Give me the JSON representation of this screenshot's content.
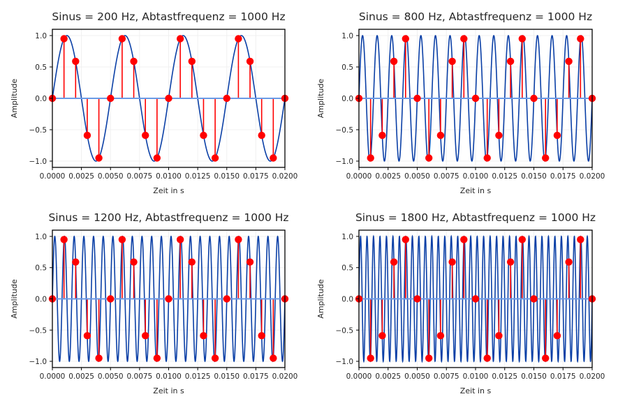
{
  "chart_data": [
    {
      "type": "line",
      "title": "Sinus = 200 Hz, Abtastfrequenz = 1000 Hz",
      "xlabel": "Zeit in s",
      "ylabel": "Amplitude",
      "signal_frequency_hz": 200,
      "sampling_frequency_hz": 1000,
      "xlim": [
        0.0,
        0.02
      ],
      "ylim": [
        -1.1,
        1.1
      ],
      "xticks": [
        "0.0000",
        "0.0025",
        "0.0050",
        "0.0075",
        "0.0100",
        "0.0125",
        "0.0150",
        "0.0175",
        "0.0200"
      ],
      "yticks": [
        "1.0",
        "0.5",
        "0.0",
        "−0.5",
        "−1.0"
      ],
      "grid": true,
      "samples": {
        "x": [
          0.0,
          0.001,
          0.002,
          0.003,
          0.004,
          0.005,
          0.006,
          0.007,
          0.008,
          0.009,
          0.01,
          0.011,
          0.012,
          0.013,
          0.014,
          0.015,
          0.016,
          0.017,
          0.018,
          0.019,
          0.02
        ],
        "y": [
          0.0,
          0.95,
          0.59,
          -0.59,
          -0.95,
          0.0,
          0.95,
          0.59,
          -0.59,
          -0.95,
          0.0,
          0.95,
          0.59,
          -0.59,
          -0.95,
          0.0,
          0.95,
          0.59,
          -0.59,
          -0.95,
          0.0
        ]
      }
    },
    {
      "type": "line",
      "title": "Sinus = 800 Hz, Abtastfrequenz = 1000 Hz",
      "xlabel": "Zeit in s",
      "ylabel": "Amplitude",
      "signal_frequency_hz": 800,
      "sampling_frequency_hz": 1000,
      "xlim": [
        0.0,
        0.02
      ],
      "ylim": [
        -1.1,
        1.1
      ],
      "xticks": [
        "0.0000",
        "0.0025",
        "0.0050",
        "0.0075",
        "0.0100",
        "0.0125",
        "0.0150",
        "0.0175",
        "0.0200"
      ],
      "yticks": [
        "1.0",
        "0.5",
        "0.0",
        "−0.5",
        "−1.0"
      ],
      "grid": true,
      "samples": {
        "x": [
          0.0,
          0.001,
          0.002,
          0.003,
          0.004,
          0.005,
          0.006,
          0.007,
          0.008,
          0.009,
          0.01,
          0.011,
          0.012,
          0.013,
          0.014,
          0.015,
          0.016,
          0.017,
          0.018,
          0.019,
          0.02
        ],
        "y": [
          0.0,
          -0.95,
          -0.59,
          0.59,
          0.95,
          0.0,
          -0.95,
          -0.59,
          0.59,
          0.95,
          0.0,
          -0.95,
          -0.59,
          0.59,
          0.95,
          0.0,
          -0.95,
          -0.59,
          0.59,
          0.95,
          0.0
        ]
      }
    },
    {
      "type": "line",
      "title": "Sinus = 1200 Hz, Abtastfrequenz = 1000 Hz",
      "xlabel": "Zeit in s",
      "ylabel": "Amplitude",
      "signal_frequency_hz": 1200,
      "sampling_frequency_hz": 1000,
      "xlim": [
        0.0,
        0.02
      ],
      "ylim": [
        -1.1,
        1.1
      ],
      "xticks": [
        "0.0000",
        "0.0025",
        "0.0050",
        "0.0075",
        "0.0100",
        "0.0125",
        "0.0150",
        "0.0175",
        "0.0200"
      ],
      "yticks": [
        "1.0",
        "0.5",
        "0.0",
        "−0.5",
        "−1.0"
      ],
      "grid": true,
      "samples": {
        "x": [
          0.0,
          0.001,
          0.002,
          0.003,
          0.004,
          0.005,
          0.006,
          0.007,
          0.008,
          0.009,
          0.01,
          0.011,
          0.012,
          0.013,
          0.014,
          0.015,
          0.016,
          0.017,
          0.018,
          0.019,
          0.02
        ],
        "y": [
          0.0,
          0.95,
          0.59,
          -0.59,
          -0.95,
          0.0,
          0.95,
          0.59,
          -0.59,
          -0.95,
          0.0,
          0.95,
          0.59,
          -0.59,
          -0.95,
          0.0,
          0.95,
          0.59,
          -0.59,
          -0.95,
          0.0
        ]
      }
    },
    {
      "type": "line",
      "title": "Sinus = 1800 Hz, Abtastfrequenz = 1000 Hz",
      "xlabel": "Zeit in s",
      "ylabel": "Amplitude",
      "signal_frequency_hz": 1800,
      "sampling_frequency_hz": 1000,
      "xlim": [
        0.0,
        0.02
      ],
      "ylim": [
        -1.1,
        1.1
      ],
      "xticks": [
        "0.0000",
        "0.0025",
        "0.0050",
        "0.0075",
        "0.0100",
        "0.0125",
        "0.0150",
        "0.0175",
        "0.0200"
      ],
      "yticks": [
        "1.0",
        "0.5",
        "0.0",
        "−0.5",
        "−1.0"
      ],
      "grid": true,
      "samples": {
        "x": [
          0.0,
          0.001,
          0.002,
          0.003,
          0.004,
          0.005,
          0.006,
          0.007,
          0.008,
          0.009,
          0.01,
          0.011,
          0.012,
          0.013,
          0.014,
          0.015,
          0.016,
          0.017,
          0.018,
          0.019,
          0.02
        ],
        "y": [
          0.0,
          -0.95,
          -0.59,
          0.59,
          0.95,
          0.0,
          -0.95,
          -0.59,
          0.59,
          0.95,
          0.0,
          -0.95,
          -0.59,
          0.59,
          0.95,
          0.0,
          -0.95,
          -0.59,
          0.59,
          0.95,
          0.0
        ]
      }
    }
  ],
  "colors": {
    "signal": "#0a3fa6",
    "sample_marker": "#ff0000",
    "stem": "#ff0000",
    "baseline": "#6b9ae6",
    "grid": "#f0f0f0",
    "axes": "#000000"
  }
}
